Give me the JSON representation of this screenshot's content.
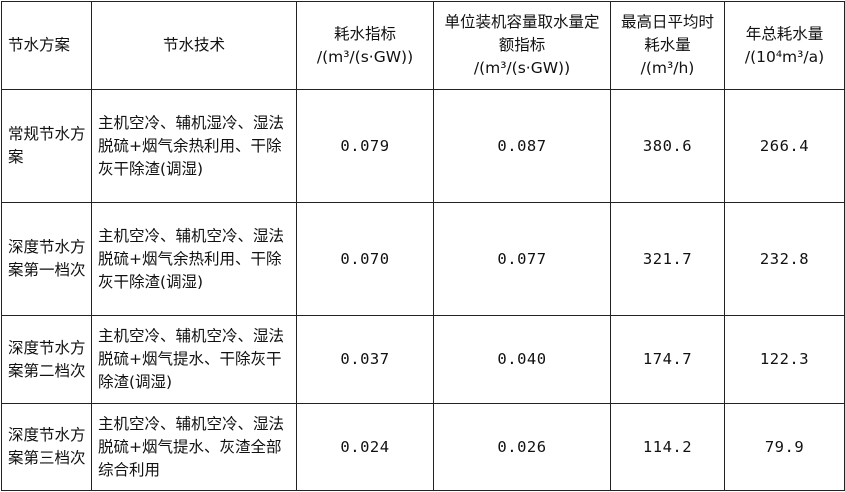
{
  "table": {
    "headers": [
      {
        "name": "节水方案",
        "unit": ""
      },
      {
        "name": "节水技术",
        "unit": ""
      },
      {
        "name": "耗水指标",
        "unit": "/(m³/(s·GW))"
      },
      {
        "name": "单位装机容量取水量定额指标",
        "unit": "/(m³/(s·GW))"
      },
      {
        "name": "最高日平均时耗水量",
        "unit": "/(m³/h)"
      },
      {
        "name": "年总耗水量",
        "unit": "/(10⁴m³/a)"
      }
    ],
    "rows": [
      {
        "plan": "常规节水方案",
        "tech": "主机空冷、辅机湿冷、湿法脱硫+烟气余热利用、干除灰干除渣(调湿)",
        "water_index": "0.079",
        "quota": "0.087",
        "peak_hourly": "380.6",
        "annual": "266.4"
      },
      {
        "plan": "深度节水方案第一档次",
        "tech": "主机空冷、辅机空冷、湿法脱硫+烟气余热利用、干除灰干除渣(调湿)",
        "water_index": "0.070",
        "quota": "0.077",
        "peak_hourly": "321.7",
        "annual": "232.8"
      },
      {
        "plan": "深度节水方案第二档次",
        "tech": "主机空冷、辅机空冷、湿法脱硫+烟气提水、干除灰干除渣(调湿)",
        "water_index": "0.037",
        "quota": "0.040",
        "peak_hourly": "174.7",
        "annual": "122.3"
      },
      {
        "plan": "深度节水方案第三档次",
        "tech": "主机空冷、辅机空冷、湿法脱硫+烟气提水、灰渣全部综合利用",
        "water_index": "0.024",
        "quota": "0.026",
        "peak_hourly": "114.2",
        "annual": "79.9"
      }
    ]
  }
}
